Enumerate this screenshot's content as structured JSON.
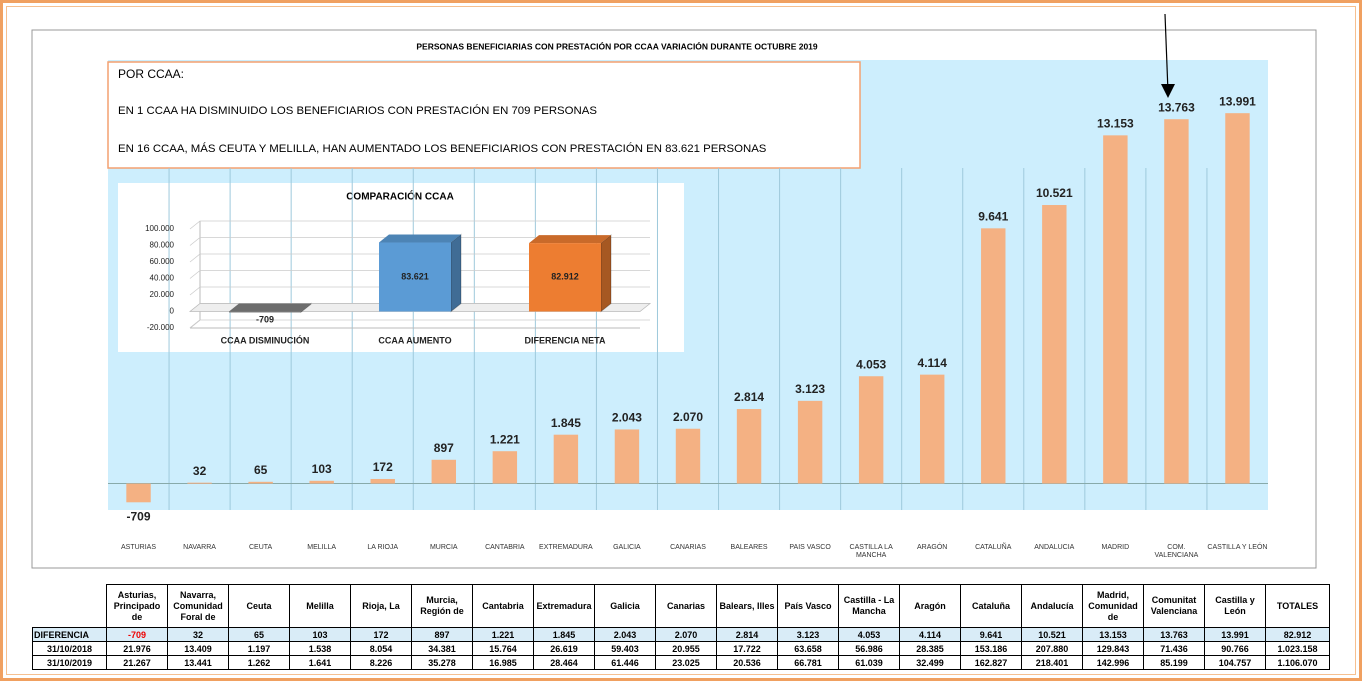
{
  "chart_data": [
    {
      "type": "bar",
      "title": "PERSONAS BENEFICIARIAS CON PRESTACIÓN POR CCAA VARIACIÓN DURANTE OCTUBRE 2019",
      "annotations": [
        "POR CCAA:",
        "EN 1 CCAA HA DISMINUIDO LOS BENEFICIARIOS CON PRESTACIÓN EN 709 PERSONAS",
        "EN 16 CCAA, MÁS CEUTA Y MELILLA, HAN AUMENTADO LOS BENEFICIARIOS CON PRESTACIÓN EN 83.621 PERSONAS"
      ],
      "categories": [
        "ASTURIAS",
        "NAVARRA",
        "CEUTA",
        "MELILLA",
        "LA RIOJA",
        "MURCIA",
        "CANTABRIA",
        "EXTREMADURA",
        "GALICIA",
        "CANARIAS",
        "BALEARES",
        "PAIS VASCO",
        "CASTILLA LA MANCHA",
        "ARAGÓN",
        "CATALUÑA",
        "ANDALUCIA",
        "MADRID",
        "COM. VALENCIANA",
        "CASTILLA Y LEÓN"
      ],
      "values": [
        -709,
        32,
        65,
        103,
        172,
        897,
        1221,
        1845,
        2043,
        2070,
        2814,
        3123,
        4053,
        4114,
        9641,
        10521,
        13153,
        13763,
        13991
      ],
      "value_labels": [
        "-709",
        "32",
        "65",
        "103",
        "172",
        "897",
        "1.221",
        "1.845",
        "2.043",
        "2.070",
        "2.814",
        "3.123",
        "4.053",
        "4.114",
        "9.641",
        "10.521",
        "13.153",
        "13.763",
        "13.991"
      ],
      "color": "#f4b183",
      "ylim": [
        -1000,
        16000
      ]
    },
    {
      "type": "bar3d",
      "title": "COMPARACIÓN CCAA",
      "categories": [
        "CCAA DISMINUCIÓN",
        "CCAA AUMENTO",
        "DIFERENCIA NETA"
      ],
      "values": [
        -709,
        83621,
        82912
      ],
      "value_labels": [
        "-709",
        "83.621",
        "82.912"
      ],
      "colors": [
        "#808080",
        "#5b9bd5",
        "#ed7d31"
      ],
      "ylim": [
        -20000,
        100000
      ],
      "yticks": [
        {
          "value": -20000,
          "label": "-20.000"
        },
        0,
        {
          "value": 20000,
          "label": "20.000"
        },
        {
          "value": 40000,
          "label": "40.000"
        },
        {
          "value": 60000,
          "label": "60.000"
        },
        {
          "value": 80000,
          "label": "80.000"
        },
        {
          "value": 100000,
          "label": "100.000"
        }
      ],
      "grid": true
    }
  ],
  "table": {
    "header": [
      "Asturias, Principado de",
      "Navarra, Comunidad Foral de",
      "Ceuta",
      "Melilla",
      "Rioja, La",
      "Murcia, Región de",
      "Cantabria",
      "Extremadura",
      "Galicia",
      "Canarias",
      "Balears, Illes",
      "País Vasco",
      "Castilla - La Mancha",
      "Aragón",
      "Cataluña",
      "Andalucía",
      "Madrid, Comunidad de",
      "Comunitat Valenciana",
      "Castilla y León",
      "TOTALES"
    ],
    "rows": [
      {
        "label": "DIFERENCIA",
        "cells": [
          "-709",
          "32",
          "65",
          "103",
          "172",
          "897",
          "1.221",
          "1.845",
          "2.043",
          "2.070",
          "2.814",
          "3.123",
          "4.053",
          "4.114",
          "9.641",
          "10.521",
          "13.153",
          "13.763",
          "13.991",
          "82.912"
        ]
      },
      {
        "label": "31/10/2018",
        "cells": [
          "21.976",
          "13.409",
          "1.197",
          "1.538",
          "8.054",
          "34.381",
          "15.764",
          "26.619",
          "59.403",
          "20.955",
          "17.722",
          "63.658",
          "56.986",
          "28.385",
          "153.186",
          "207.880",
          "129.843",
          "71.436",
          "90.766",
          "1.023.158"
        ]
      },
      {
        "label": "31/10/2019",
        "cells": [
          "21.267",
          "13.441",
          "1.262",
          "1.641",
          "8.226",
          "35.278",
          "16.985",
          "28.464",
          "61.446",
          "23.025",
          "20.536",
          "66.781",
          "61.039",
          "32.499",
          "162.827",
          "218.401",
          "142.996",
          "85.199",
          "104.757",
          "1.106.070"
        ]
      }
    ]
  }
}
